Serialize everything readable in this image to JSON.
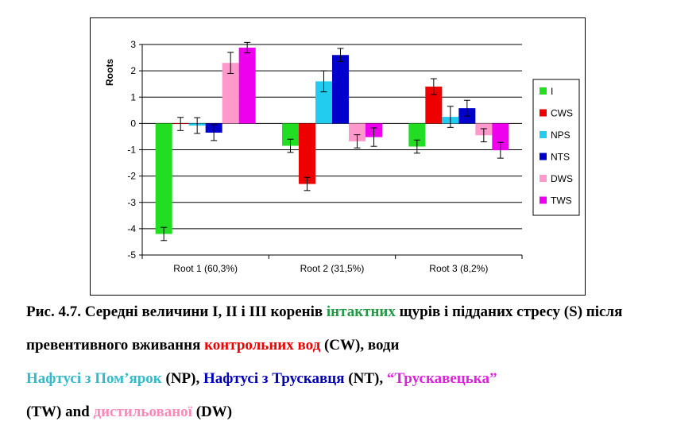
{
  "chart_data": {
    "type": "bar",
    "ylabel": "Roots",
    "ylim": [
      -5,
      3
    ],
    "yticks": [
      3,
      2,
      1,
      0,
      -1,
      -2,
      -3,
      -4,
      -5
    ],
    "categories": [
      "Root 1 (60,3%)",
      "Root 2 (31,5%)",
      "Root 3 (8,2%)"
    ],
    "error_bars": true,
    "grid": "horizontal",
    "legend": "right",
    "series": [
      {
        "name": "I",
        "color": "#22dd22",
        "values": [
          -4.2,
          -0.85,
          -0.88
        ],
        "errors": [
          0.25,
          0.25,
          0.25
        ]
      },
      {
        "name": "CWS",
        "color": "#ee0000",
        "values": [
          -0.02,
          -2.3,
          1.4
        ],
        "errors": [
          0.25,
          0.25,
          0.3
        ]
      },
      {
        "name": "NPS",
        "color": "#22ccee",
        "values": [
          -0.08,
          1.6,
          0.25
        ],
        "errors": [
          0.3,
          0.4,
          0.4
        ]
      },
      {
        "name": "NTS",
        "color": "#0000cc",
        "values": [
          -0.35,
          2.6,
          0.58
        ],
        "errors": [
          0.3,
          0.25,
          0.3
        ]
      },
      {
        "name": "DWS",
        "color": "#ff99cc",
        "values": [
          2.3,
          -0.68,
          -0.45
        ],
        "errors": [
          0.4,
          0.25,
          0.25
        ]
      },
      {
        "name": "TWS",
        "color": "#ee00ee",
        "values": [
          2.88,
          -0.52,
          -1.02
        ],
        "errors": [
          0.2,
          0.35,
          0.3
        ]
      }
    ]
  },
  "caption": {
    "p1": "Рис. 4.7. Середні величини I, II і III коренів ",
    "intact": "інтактних",
    "p2": " щурів і підданих стресу (S) після превентивного вживання ",
    "control": "контрольних вод",
    "p3": " (CW), води ",
    "np": "Нафтусі з Пом’ярок",
    "p4": " (NP), ",
    "nt": "Нафтусі з Трускавця",
    "p5": " (NT), ",
    "tw": "“Трускавецька”",
    "p6": " (TW) and ",
    "dw": "дистильованої",
    "p7": " (DW)",
    "colors": {
      "intact": "#229944",
      "control": "#ee0000",
      "np": "#33bbcc",
      "nt": "#0000bb",
      "tw": "#dd22dd",
      "dw": "#ff88bb"
    }
  }
}
